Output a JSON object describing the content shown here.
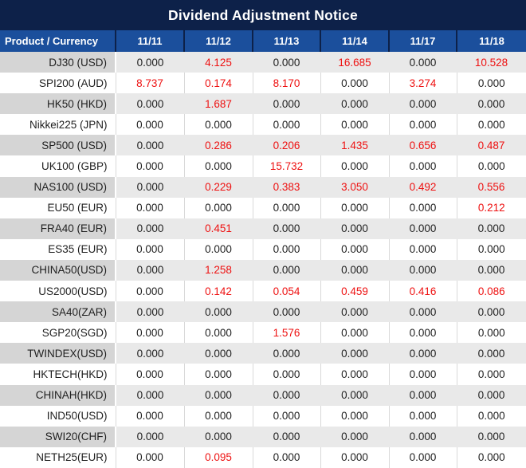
{
  "title": "Dividend Adjustment Notice",
  "colors": {
    "title_bg": "#0d2149",
    "header_bg": "#1b4f9c",
    "header_divider": "#0d2149",
    "header_text": "#ffffff",
    "stripe_product_bg": "#d5d5d5",
    "stripe_bg": "#e9e9e9",
    "plain_bg": "#ffffff",
    "grid_line": "#d9d9d9",
    "value_text": "#1f1f1f",
    "nonzero_value_text": "#ee1111"
  },
  "table": {
    "corner_label": "Product / Currency",
    "date_columns": [
      "11/11",
      "11/12",
      "11/13",
      "11/14",
      "11/17",
      "11/18"
    ],
    "rows": [
      {
        "product": "DJ30 (USD)",
        "values": [
          "0.000",
          "4.125",
          "0.000",
          "16.685",
          "0.000",
          "10.528"
        ]
      },
      {
        "product": "SPI200 (AUD)",
        "values": [
          "8.737",
          "0.174",
          "8.170",
          "0.000",
          "3.274",
          "0.000"
        ]
      },
      {
        "product": "HK50 (HKD)",
        "values": [
          "0.000",
          "1.687",
          "0.000",
          "0.000",
          "0.000",
          "0.000"
        ]
      },
      {
        "product": "Nikkei225 (JPN)",
        "values": [
          "0.000",
          "0.000",
          "0.000",
          "0.000",
          "0.000",
          "0.000"
        ]
      },
      {
        "product": "SP500 (USD)",
        "values": [
          "0.000",
          "0.286",
          "0.206",
          "1.435",
          "0.656",
          "0.487"
        ]
      },
      {
        "product": "UK100 (GBP)",
        "values": [
          "0.000",
          "0.000",
          "15.732",
          "0.000",
          "0.000",
          "0.000"
        ]
      },
      {
        "product": "NAS100 (USD)",
        "values": [
          "0.000",
          "0.229",
          "0.383",
          "3.050",
          "0.492",
          "0.556"
        ]
      },
      {
        "product": "EU50 (EUR)",
        "values": [
          "0.000",
          "0.000",
          "0.000",
          "0.000",
          "0.000",
          "0.212"
        ]
      },
      {
        "product": "FRA40 (EUR)",
        "values": [
          "0.000",
          "0.451",
          "0.000",
          "0.000",
          "0.000",
          "0.000"
        ]
      },
      {
        "product": "ES35 (EUR)",
        "values": [
          "0.000",
          "0.000",
          "0.000",
          "0.000",
          "0.000",
          "0.000"
        ]
      },
      {
        "product": "CHINA50(USD)",
        "values": [
          "0.000",
          "1.258",
          "0.000",
          "0.000",
          "0.000",
          "0.000"
        ]
      },
      {
        "product": "US2000(USD)",
        "values": [
          "0.000",
          "0.142",
          "0.054",
          "0.459",
          "0.416",
          "0.086"
        ]
      },
      {
        "product": "SA40(ZAR)",
        "values": [
          "0.000",
          "0.000",
          "0.000",
          "0.000",
          "0.000",
          "0.000"
        ]
      },
      {
        "product": "SGP20(SGD)",
        "values": [
          "0.000",
          "0.000",
          "1.576",
          "0.000",
          "0.000",
          "0.000"
        ]
      },
      {
        "product": "TWINDEX(USD)",
        "values": [
          "0.000",
          "0.000",
          "0.000",
          "0.000",
          "0.000",
          "0.000"
        ]
      },
      {
        "product": "HKTECH(HKD)",
        "values": [
          "0.000",
          "0.000",
          "0.000",
          "0.000",
          "0.000",
          "0.000"
        ]
      },
      {
        "product": "CHINAH(HKD)",
        "values": [
          "0.000",
          "0.000",
          "0.000",
          "0.000",
          "0.000",
          "0.000"
        ]
      },
      {
        "product": "IND50(USD)",
        "values": [
          "0.000",
          "0.000",
          "0.000",
          "0.000",
          "0.000",
          "0.000"
        ]
      },
      {
        "product": "SWI20(CHF)",
        "values": [
          "0.000",
          "0.000",
          "0.000",
          "0.000",
          "0.000",
          "0.000"
        ]
      },
      {
        "product": "NETH25(EUR)",
        "values": [
          "0.000",
          "0.095",
          "0.000",
          "0.000",
          "0.000",
          "0.000"
        ]
      }
    ]
  }
}
